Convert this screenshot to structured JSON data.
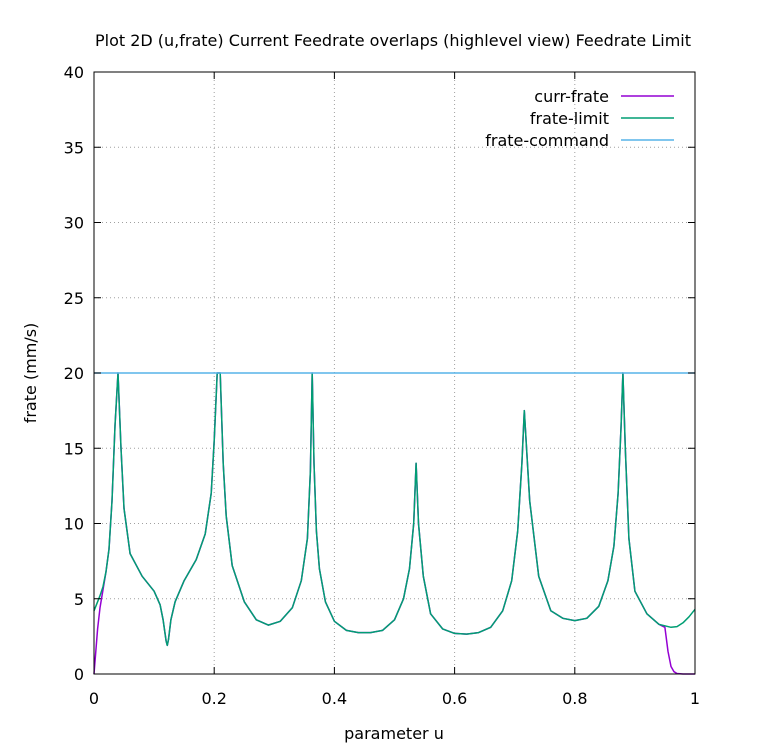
{
  "chart_data": {
    "type": "line",
    "title": "Plot 2D (u,frate) Current Feedrate overlaps (highlevel view) Feedrate Limit",
    "xlabel": "parameter u",
    "ylabel": "frate (mm/s)",
    "xlim": [
      0,
      1
    ],
    "ylim": [
      0,
      40
    ],
    "xticks": [
      0,
      0.2,
      0.4,
      0.6,
      0.8,
      1
    ],
    "xtick_labels": [
      "0",
      "0.2",
      "0.4",
      "0.6",
      "0.8",
      "1"
    ],
    "yticks": [
      0,
      5,
      10,
      15,
      20,
      25,
      30,
      35,
      40
    ],
    "ytick_labels": [
      "0",
      "5",
      "10",
      "15",
      "20",
      "25",
      "30",
      "35",
      "40"
    ],
    "grid": true,
    "legend_position": "top-right",
    "series": [
      {
        "name": "curr-frate",
        "color": "#9400d3",
        "x": [
          0,
          0.003,
          0.006,
          0.01,
          0.015,
          0.02,
          0.025,
          0.03,
          0.035,
          0.04,
          0.045,
          0.05,
          0.06,
          0.08,
          0.1,
          0.11,
          0.115,
          0.12,
          0.122,
          0.124,
          0.128,
          0.135,
          0.15,
          0.17,
          0.185,
          0.195,
          0.2,
          0.205,
          0.21,
          0.215,
          0.22,
          0.23,
          0.25,
          0.27,
          0.29,
          0.31,
          0.33,
          0.345,
          0.355,
          0.36,
          0.363,
          0.366,
          0.37,
          0.375,
          0.385,
          0.4,
          0.42,
          0.44,
          0.46,
          0.48,
          0.5,
          0.515,
          0.525,
          0.532,
          0.536,
          0.54,
          0.548,
          0.56,
          0.58,
          0.6,
          0.62,
          0.64,
          0.66,
          0.68,
          0.695,
          0.705,
          0.712,
          0.716,
          0.725,
          0.74,
          0.76,
          0.78,
          0.8,
          0.82,
          0.84,
          0.855,
          0.865,
          0.872,
          0.877,
          0.88,
          0.884,
          0.89,
          0.9,
          0.92,
          0.94,
          0.95,
          0.955,
          0.96,
          0.965,
          0.97,
          0.98,
          1
        ],
        "y": [
          0,
          1.5,
          3.0,
          4.4,
          5.6,
          6.8,
          8.3,
          11.5,
          16.5,
          20,
          15,
          11,
          8.0,
          6.5,
          5.5,
          4.6,
          3.6,
          2.2,
          1.9,
          2.3,
          3.6,
          4.8,
          6.2,
          7.6,
          9.3,
          12.0,
          15.5,
          20,
          20,
          14,
          10.5,
          7.2,
          4.8,
          3.6,
          3.25,
          3.5,
          4.4,
          6.2,
          9.0,
          13.5,
          20,
          14,
          9.5,
          7.0,
          4.8,
          3.5,
          2.9,
          2.75,
          2.75,
          2.9,
          3.6,
          5.0,
          7.0,
          10.0,
          14.0,
          10.0,
          6.5,
          4.0,
          3.0,
          2.7,
          2.65,
          2.75,
          3.1,
          4.2,
          6.2,
          9.5,
          14.0,
          17.5,
          11.5,
          6.5,
          4.2,
          3.7,
          3.55,
          3.7,
          4.5,
          6.2,
          8.5,
          12.0,
          16.5,
          20,
          15.0,
          9.0,
          5.5,
          4.0,
          3.3,
          3.1,
          1.5,
          0.5,
          0.15,
          0.03,
          0,
          0
        ]
      },
      {
        "name": "frate-limit",
        "color": "#009e73",
        "x": [
          0,
          0.005,
          0.01,
          0.015,
          0.02,
          0.025,
          0.03,
          0.035,
          0.04,
          0.045,
          0.05,
          0.06,
          0.08,
          0.1,
          0.11,
          0.115,
          0.12,
          0.122,
          0.124,
          0.128,
          0.135,
          0.15,
          0.17,
          0.185,
          0.195,
          0.2,
          0.205,
          0.21,
          0.215,
          0.22,
          0.23,
          0.25,
          0.27,
          0.29,
          0.31,
          0.33,
          0.345,
          0.355,
          0.36,
          0.363,
          0.366,
          0.37,
          0.375,
          0.385,
          0.4,
          0.42,
          0.44,
          0.46,
          0.48,
          0.5,
          0.515,
          0.525,
          0.532,
          0.536,
          0.54,
          0.548,
          0.56,
          0.58,
          0.6,
          0.62,
          0.64,
          0.66,
          0.68,
          0.695,
          0.705,
          0.712,
          0.716,
          0.725,
          0.74,
          0.76,
          0.78,
          0.8,
          0.82,
          0.84,
          0.855,
          0.865,
          0.872,
          0.877,
          0.88,
          0.884,
          0.89,
          0.9,
          0.92,
          0.94,
          0.95,
          0.96,
          0.97,
          0.98,
          0.99,
          1
        ],
        "y": [
          4.2,
          4.7,
          5.2,
          5.8,
          6.8,
          8.3,
          11.5,
          16.5,
          20,
          15,
          11,
          8.0,
          6.5,
          5.5,
          4.6,
          3.6,
          2.2,
          1.9,
          2.3,
          3.6,
          4.8,
          6.2,
          7.6,
          9.3,
          12.0,
          15.5,
          20,
          20,
          14,
          10.5,
          7.2,
          4.8,
          3.6,
          3.25,
          3.5,
          4.4,
          6.2,
          9.0,
          13.5,
          20,
          14,
          9.5,
          7.0,
          4.8,
          3.5,
          2.9,
          2.75,
          2.75,
          2.9,
          3.6,
          5.0,
          7.0,
          10.0,
          14.0,
          10.0,
          6.5,
          4.0,
          3.0,
          2.7,
          2.65,
          2.75,
          3.1,
          4.2,
          6.2,
          9.5,
          14.0,
          17.5,
          11.5,
          6.5,
          4.2,
          3.7,
          3.55,
          3.7,
          4.5,
          6.2,
          8.5,
          12.0,
          16.5,
          20,
          15.0,
          9.0,
          5.5,
          4.0,
          3.3,
          3.2,
          3.1,
          3.15,
          3.4,
          3.8,
          4.3
        ]
      },
      {
        "name": "frate-command",
        "color": "#56b4e9",
        "x": [
          0,
          1
        ],
        "y": [
          20,
          20
        ]
      }
    ]
  }
}
